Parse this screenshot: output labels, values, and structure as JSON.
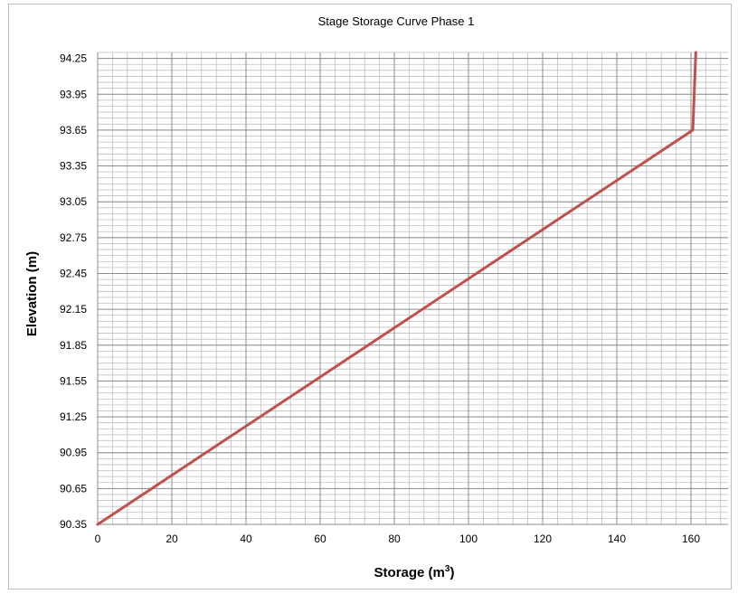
{
  "chart_data": {
    "type": "line",
    "title": "Stage Storage Curve Phase 1",
    "xlabel": "Storage (m",
    "xlabel_superscript": "3",
    "xlabel_suffix": ")",
    "ylabel": "Elevation (m)",
    "xlim": [
      0,
      170
    ],
    "ylim": [
      90.35,
      94.3
    ],
    "x_ticks": [
      0,
      20,
      40,
      60,
      80,
      100,
      120,
      140,
      160
    ],
    "y_ticks": [
      "90.35",
      "90.65",
      "90.95",
      "91.25",
      "91.55",
      "91.85",
      "92.15",
      "92.45",
      "92.75",
      "93.05",
      "93.35",
      "93.65",
      "93.95",
      "94.25"
    ],
    "x_minor_step": 4,
    "y_minor_step": 0.05,
    "grid": true,
    "legend": "none",
    "series": [
      {
        "color": "#c0504d",
        "x": [
          0,
          160.5,
          161.3
        ],
        "y": [
          90.35,
          93.65,
          94.3
        ]
      }
    ]
  }
}
